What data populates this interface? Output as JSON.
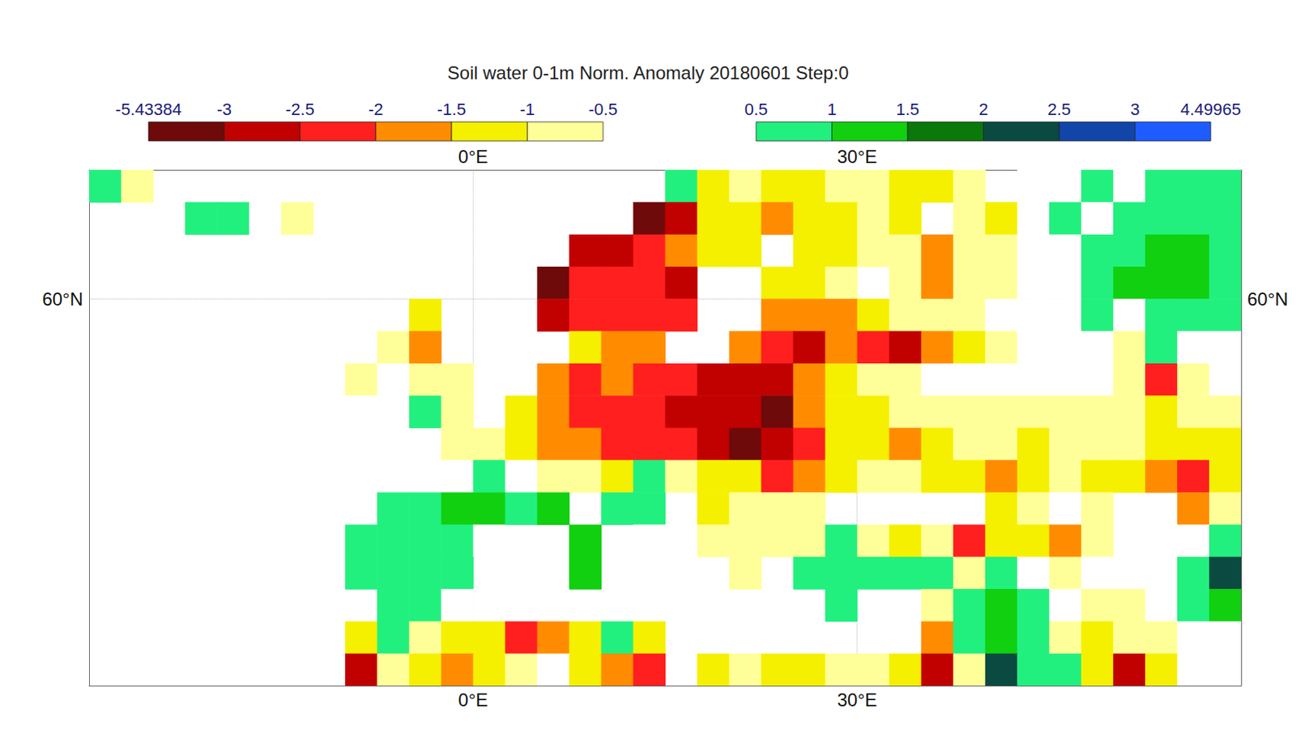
{
  "chart_data": {
    "type": "heatmap",
    "title": "Soil water 0-1m Norm. Anomaly 20180601 Step:0",
    "xlim": [
      -30,
      60
    ],
    "ylim": [
      30,
      70
    ],
    "xticks": [
      {
        "value": 0,
        "label": "0°E"
      },
      {
        "value": 30,
        "label": "30°E"
      }
    ],
    "yticks": [
      {
        "value": 60,
        "label": "60°N"
      }
    ],
    "grid": true,
    "x": [
      -28.75,
      -26.25,
      -23.75,
      -21.25,
      -18.75,
      -16.25,
      -13.75,
      -11.25,
      -8.75,
      -6.25,
      -3.75,
      -1.25,
      1.25,
      3.75,
      6.25,
      8.75,
      11.25,
      13.75,
      16.25,
      18.75,
      21.25,
      23.75,
      26.25,
      28.75,
      31.25,
      33.75,
      36.25,
      38.75,
      41.25,
      43.75,
      46.25,
      48.75,
      51.25,
      53.75,
      56.25,
      58.75
    ],
    "y": [
      68.75,
      66.25,
      63.75,
      61.25,
      58.75,
      56.25,
      53.75,
      51.25,
      48.75,
      46.25,
      43.75,
      41.25,
      38.75,
      36.25,
      33.75,
      31.25
    ],
    "cells": [
      [
        0.6,
        -0.7,
        null,
        null,
        null,
        null,
        null,
        null,
        null,
        null,
        null,
        null,
        null,
        null,
        null,
        null,
        null,
        null,
        0.6,
        -1.2,
        -0.8,
        -1.2,
        -1.0,
        -0.6,
        -0.7,
        -1.0,
        -1.3,
        -0.8,
        null,
        0,
        0,
        0.6,
        0,
        0.7,
        0.8,
        0.5
      ],
      [
        null,
        null,
        null,
        0.6,
        0.8,
        0,
        -0.7,
        null,
        null,
        null,
        null,
        null,
        null,
        null,
        null,
        null,
        null,
        -3.2,
        -2.5,
        -1.2,
        -1.0,
        -1.5,
        -1.2,
        -1.0,
        -0.8,
        -1.0,
        null,
        -0.8,
        -1.0,
        0,
        0.6,
        0,
        0.7,
        0.6,
        0.8,
        0.6
      ],
      [
        null,
        null,
        null,
        null,
        null,
        null,
        null,
        null,
        null,
        null,
        null,
        null,
        null,
        null,
        null,
        -2.5,
        -2.5,
        -2.0,
        -1.5,
        -1.2,
        -1.3,
        null,
        -1.0,
        -1.2,
        -0.7,
        -0.9,
        -1.5,
        -0.8,
        -0.7,
        0,
        0,
        0.6,
        1.0,
        1.2,
        1.5,
        1.0
      ],
      [
        null,
        null,
        null,
        null,
        null,
        null,
        null,
        null,
        null,
        null,
        null,
        null,
        null,
        null,
        -3.0,
        -2.2,
        -2.0,
        -2.0,
        -2.5,
        null,
        null,
        -1.0,
        -1.2,
        -0.8,
        null,
        -0.8,
        -1.5,
        -0.7,
        -0.6,
        0,
        0,
        0.7,
        1.2,
        1.5,
        1.2,
        0.8
      ],
      [
        null,
        null,
        null,
        null,
        null,
        null,
        null,
        null,
        null,
        null,
        -1.0,
        null,
        null,
        null,
        -2.5,
        -2.0,
        -2.2,
        -2.0,
        -2.2,
        null,
        null,
        -1.5,
        -1.8,
        -1.5,
        -1.2,
        -0.8,
        -0.7,
        -0.6,
        0,
        0,
        0,
        0.6,
        0,
        0.6,
        0.5,
        0.6
      ],
      [
        null,
        null,
        null,
        null,
        null,
        null,
        null,
        null,
        null,
        -0.8,
        -1.5,
        null,
        null,
        null,
        null,
        -1.2,
        -1.8,
        -1.5,
        null,
        null,
        -1.8,
        -2.3,
        -2.5,
        -1.5,
        -2.0,
        -2.8,
        -1.5,
        -1.0,
        -0.6,
        0,
        0,
        0,
        -0.6,
        0.6,
        0,
        0
      ],
      [
        null,
        null,
        null,
        null,
        null,
        null,
        null,
        null,
        -0.7,
        0,
        -0.7,
        -0.8,
        null,
        null,
        -1.8,
        -2.0,
        -1.8,
        -2.0,
        -2.3,
        -2.5,
        -2.8,
        -2.5,
        -1.8,
        -1.0,
        -0.8,
        -0.6,
        0,
        0,
        0,
        0,
        0,
        0,
        -0.6,
        -2.2,
        -0.7,
        0
      ],
      [
        null,
        null,
        null,
        null,
        null,
        null,
        null,
        null,
        0,
        null,
        0.6,
        -0.7,
        null,
        -1.0,
        -1.8,
        -2.0,
        -2.2,
        -2.0,
        -2.5,
        -2.5,
        -2.8,
        -3.0,
        -1.8,
        -1.2,
        -1.0,
        -0.7,
        -0.6,
        -0.6,
        -0.7,
        -0.8,
        -0.6,
        -0.6,
        -0.7,
        -1.0,
        -0.7,
        -0.6
      ],
      [
        null,
        null,
        null,
        null,
        null,
        null,
        null,
        null,
        null,
        null,
        null,
        -0.8,
        -0.7,
        -1.2,
        -1.5,
        -1.8,
        -2.0,
        -2.2,
        -2.0,
        -2.5,
        -3.0,
        -2.5,
        -2.0,
        -1.2,
        -1.0,
        -1.5,
        -1.0,
        -0.8,
        -0.6,
        -1.0,
        -0.7,
        -0.6,
        -0.8,
        -1.0,
        -1.2,
        -1.0
      ],
      [
        null,
        null,
        null,
        null,
        null,
        null,
        null,
        null,
        null,
        null,
        null,
        0,
        0.6,
        0,
        -0.7,
        -0.8,
        -1.2,
        1.0,
        -0.8,
        -1.2,
        -1.0,
        -2.3,
        -1.8,
        -1.2,
        -0.8,
        -0.8,
        -1.0,
        -1.2,
        -1.8,
        -1.2,
        -0.8,
        -1.0,
        -1.2,
        -1.5,
        -2.0,
        -1.2
      ],
      [
        null,
        null,
        null,
        null,
        null,
        null,
        null,
        null,
        null,
        0.6,
        1.0,
        1.2,
        1.5,
        0.8,
        1.2,
        null,
        0.8,
        0.8,
        null,
        -1.0,
        -0.8,
        -0.7,
        -0.7,
        null,
        null,
        null,
        null,
        null,
        -1.0,
        -0.7,
        0,
        -0.7,
        null,
        null,
        -1.5,
        -0.7
      ],
      [
        null,
        null,
        null,
        null,
        null,
        null,
        null,
        null,
        0.8,
        1.0,
        0.7,
        0.6,
        0,
        null,
        null,
        1.5,
        null,
        0,
        0,
        -0.7,
        -0.6,
        -0.6,
        -0.6,
        0.6,
        -0.7,
        -1.0,
        -0.7,
        -2.0,
        -1.2,
        -1.0,
        -1.5,
        -0.7,
        null,
        null,
        0,
        1.0
      ],
      [
        null,
        null,
        null,
        null,
        null,
        null,
        null,
        null,
        0.8,
        1.0,
        0.6,
        0.6,
        null,
        null,
        null,
        1.2,
        null,
        0,
        0,
        null,
        -0.6,
        null,
        0.6,
        0.7,
        0.8,
        0.7,
        0.6,
        -0.6,
        1.0,
        0,
        -0.6,
        0,
        null,
        null,
        1.0,
        2.5
      ],
      [
        null,
        null,
        null,
        null,
        null,
        null,
        null,
        null,
        null,
        0.6,
        0.6,
        0,
        null,
        null,
        null,
        null,
        null,
        0,
        null,
        null,
        null,
        null,
        null,
        0.6,
        null,
        null,
        -0.7,
        0.8,
        1.5,
        1.0,
        0,
        -0.8,
        -0.7,
        0,
        0.8,
        1.5
      ],
      [
        null,
        null,
        null,
        null,
        null,
        null,
        null,
        null,
        -1.0,
        0.6,
        -0.8,
        -1.0,
        -1.2,
        -2.0,
        -1.5,
        -1.0,
        0.7,
        -1.0,
        null,
        null,
        null,
        null,
        null,
        null,
        null,
        null,
        -1.5,
        0.8,
        1.5,
        0.6,
        -0.7,
        -1.0,
        -0.7,
        -0.6,
        0,
        0
      ],
      [
        null,
        null,
        null,
        null,
        null,
        null,
        null,
        null,
        -2.5,
        -0.8,
        -1.0,
        -1.5,
        -1.2,
        -0.8,
        0,
        -1.2,
        -1.5,
        -2.0,
        null,
        -1.0,
        -0.8,
        -1.0,
        -1.2,
        -0.8,
        -0.7,
        -1.0,
        -2.5,
        -0.8,
        2.5,
        1.0,
        0.8,
        -1.0,
        -2.5,
        -1.2,
        0,
        0
      ]
    ],
    "colorbar": [
      {
        "ticks": [
          -5.43384,
          -3,
          -2.5,
          -2,
          -1.5,
          -1,
          -0.5
        ],
        "colors": [
          "#6e0a0a",
          "#c10000",
          "#ff1f1f",
          "#ff8c00",
          "#f5f000",
          "#ffff99"
        ]
      },
      {
        "ticks": [
          0.5,
          1,
          1.5,
          2,
          2.5,
          3,
          4.49965
        ],
        "colors": [
          "#22f07e",
          "#10d010",
          "#0a780a",
          "#0a4a40",
          "#1245a8",
          "#1f5cff"
        ]
      }
    ]
  }
}
